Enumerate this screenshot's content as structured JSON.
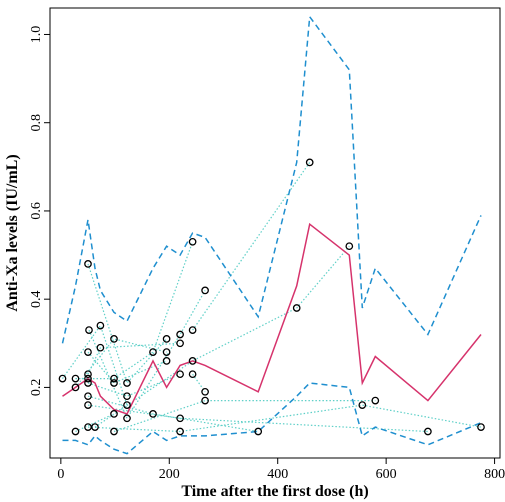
{
  "chart_data": {
    "type": "scatter",
    "title": "",
    "xlabel": "Time after the first dose (h)",
    "ylabel": "Anti-Xa levels (IU/mL)",
    "xlim": [
      -20,
      810
    ],
    "ylim": [
      0.04,
      1.06
    ],
    "xticks": [
      0,
      200,
      400,
      600,
      800
    ],
    "yticks": [
      0.2,
      0.4,
      0.6,
      0.8,
      1.0
    ],
    "ytick_labels": [
      "0.2",
      "0.4",
      "0.6",
      "0.8",
      "1.0"
    ],
    "grid": false,
    "points": [
      {
        "x": 3,
        "y": 0.22
      },
      {
        "x": 27,
        "y": 0.22
      },
      {
        "x": 27,
        "y": 0.2
      },
      {
        "x": 27,
        "y": 0.1
      },
      {
        "x": 50,
        "y": 0.48
      },
      {
        "x": 52,
        "y": 0.33
      },
      {
        "x": 50,
        "y": 0.28
      },
      {
        "x": 50,
        "y": 0.23
      },
      {
        "x": 50,
        "y": 0.22
      },
      {
        "x": 50,
        "y": 0.21
      },
      {
        "x": 50,
        "y": 0.18
      },
      {
        "x": 50,
        "y": 0.16
      },
      {
        "x": 50,
        "y": 0.11
      },
      {
        "x": 63,
        "y": 0.11
      },
      {
        "x": 73,
        "y": 0.34
      },
      {
        "x": 73,
        "y": 0.29
      },
      {
        "x": 98,
        "y": 0.31
      },
      {
        "x": 98,
        "y": 0.22
      },
      {
        "x": 98,
        "y": 0.21
      },
      {
        "x": 98,
        "y": 0.14
      },
      {
        "x": 98,
        "y": 0.1
      },
      {
        "x": 122,
        "y": 0.21
      },
      {
        "x": 122,
        "y": 0.18
      },
      {
        "x": 122,
        "y": 0.16
      },
      {
        "x": 122,
        "y": 0.13
      },
      {
        "x": 170,
        "y": 0.28
      },
      {
        "x": 170,
        "y": 0.14
      },
      {
        "x": 195,
        "y": 0.31
      },
      {
        "x": 195,
        "y": 0.28
      },
      {
        "x": 195,
        "y": 0.26
      },
      {
        "x": 220,
        "y": 0.32
      },
      {
        "x": 220,
        "y": 0.3
      },
      {
        "x": 220,
        "y": 0.23
      },
      {
        "x": 220,
        "y": 0.13
      },
      {
        "x": 220,
        "y": 0.1
      },
      {
        "x": 243,
        "y": 0.53
      },
      {
        "x": 243,
        "y": 0.33
      },
      {
        "x": 243,
        "y": 0.26
      },
      {
        "x": 243,
        "y": 0.23
      },
      {
        "x": 266,
        "y": 0.42
      },
      {
        "x": 266,
        "y": 0.19
      },
      {
        "x": 266,
        "y": 0.17
      },
      {
        "x": 364,
        "y": 0.1
      },
      {
        "x": 435,
        "y": 0.38
      },
      {
        "x": 459,
        "y": 0.71
      },
      {
        "x": 532,
        "y": 0.52
      },
      {
        "x": 556,
        "y": 0.16
      },
      {
        "x": 580,
        "y": 0.17
      },
      {
        "x": 677,
        "y": 0.1
      },
      {
        "x": 775,
        "y": 0.11
      }
    ],
    "series": [
      {
        "style": "solid",
        "color": "#d6336c",
        "x": [
          3,
          27,
          50,
          63,
          73,
          98,
          122,
          170,
          195,
          220,
          243,
          266,
          364,
          435,
          459,
          532,
          556,
          580,
          677,
          775
        ],
        "y": [
          0.18,
          0.2,
          0.22,
          0.21,
          0.18,
          0.15,
          0.14,
          0.26,
          0.2,
          0.25,
          0.26,
          0.25,
          0.19,
          0.43,
          0.57,
          0.5,
          0.21,
          0.27,
          0.17,
          0.32
        ]
      },
      {
        "style": "dashed",
        "color": "#1f8fcf",
        "x": [
          3,
          27,
          50,
          63,
          73,
          98,
          122,
          170,
          195,
          220,
          243,
          266,
          364,
          435,
          459,
          532,
          556,
          580,
          677,
          775
        ],
        "y": [
          0.3,
          0.43,
          0.58,
          0.47,
          0.42,
          0.37,
          0.35,
          0.47,
          0.52,
          0.5,
          0.55,
          0.54,
          0.36,
          0.71,
          1.04,
          0.92,
          0.38,
          0.47,
          0.32,
          0.59
        ]
      },
      {
        "style": "dashed",
        "color": "#1f8fcf",
        "x": [
          3,
          27,
          50,
          63,
          73,
          98,
          122,
          170,
          195,
          220,
          243,
          266,
          364,
          435,
          459,
          532,
          556,
          580,
          677,
          775
        ],
        "y": [
          0.08,
          0.08,
          0.07,
          0.09,
          0.08,
          0.06,
          0.05,
          0.1,
          0.08,
          0.09,
          0.09,
          0.09,
          0.1,
          0.18,
          0.21,
          0.2,
          0.09,
          0.11,
          0.07,
          0.12
        ]
      }
    ],
    "subject_links": [
      [
        {
          "x": 3,
          "y": 0.22
        },
        {
          "x": 73,
          "y": 0.34
        },
        {
          "x": 122,
          "y": 0.16
        }
      ],
      [
        {
          "x": 27,
          "y": 0.22
        },
        {
          "x": 98,
          "y": 0.22
        },
        {
          "x": 170,
          "y": 0.28
        },
        {
          "x": 243,
          "y": 0.53
        }
      ],
      [
        {
          "x": 27,
          "y": 0.2
        },
        {
          "x": 98,
          "y": 0.31
        },
        {
          "x": 195,
          "y": 0.28
        }
      ],
      [
        {
          "x": 27,
          "y": 0.1
        },
        {
          "x": 98,
          "y": 0.14
        }
      ],
      [
        {
          "x": 50,
          "y": 0.48
        },
        {
          "x": 122,
          "y": 0.21
        },
        {
          "x": 195,
          "y": 0.31
        }
      ],
      [
        {
          "x": 52,
          "y": 0.33
        },
        {
          "x": 122,
          "y": 0.13
        },
        {
          "x": 220,
          "y": 0.32
        },
        {
          "x": 266,
          "y": 0.42
        }
      ],
      [
        {
          "x": 50,
          "y": 0.28
        },
        {
          "x": 98,
          "y": 0.21
        },
        {
          "x": 195,
          "y": 0.26
        }
      ],
      [
        {
          "x": 50,
          "y": 0.23
        },
        {
          "x": 73,
          "y": 0.29
        },
        {
          "x": 220,
          "y": 0.3
        }
      ],
      [
        {
          "x": 50,
          "y": 0.21
        },
        {
          "x": 122,
          "y": 0.18
        },
        {
          "x": 220,
          "y": 0.23
        }
      ],
      [
        {
          "x": 50,
          "y": 0.18
        },
        {
          "x": 170,
          "y": 0.14
        },
        {
          "x": 364,
          "y": 0.1
        }
      ],
      [
        {
          "x": 50,
          "y": 0.16
        },
        {
          "x": 220,
          "y": 0.13
        },
        {
          "x": 677,
          "y": 0.1
        }
      ],
      [
        {
          "x": 50,
          "y": 0.11
        },
        {
          "x": 220,
          "y": 0.1
        },
        {
          "x": 556,
          "y": 0.16
        },
        {
          "x": 775,
          "y": 0.11
        }
      ],
      [
        {
          "x": 63,
          "y": 0.11
        },
        {
          "x": 243,
          "y": 0.26
        },
        {
          "x": 435,
          "y": 0.38
        },
        {
          "x": 532,
          "y": 0.52
        }
      ],
      [
        {
          "x": 98,
          "y": 0.1
        },
        {
          "x": 266,
          "y": 0.17
        },
        {
          "x": 580,
          "y": 0.17
        }
      ],
      [
        {
          "x": 243,
          "y": 0.33
        },
        {
          "x": 459,
          "y": 0.71
        }
      ],
      [
        {
          "x": 243,
          "y": 0.23
        },
        {
          "x": 266,
          "y": 0.19
        }
      ]
    ],
    "colors": {
      "median_line": "#d6336c",
      "interval_lines": "#1f8fcf",
      "subject_links": "#5fd0c8",
      "points": "#000000"
    }
  }
}
